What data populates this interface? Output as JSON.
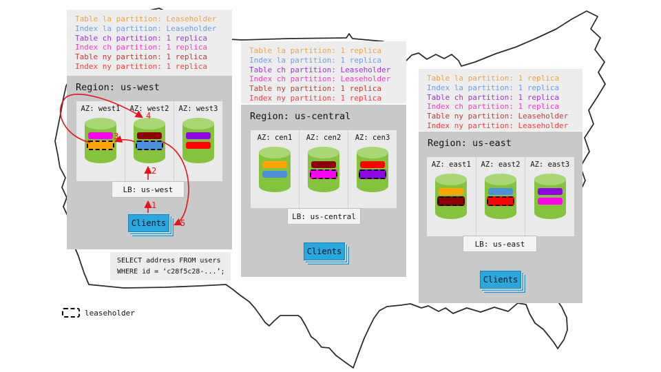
{
  "regions": [
    {
      "name": "us-west",
      "title": "Region: us-west",
      "legend": [
        {
          "text": "Table la partition: Leaseholder",
          "color": "#f0a343"
        },
        {
          "text": "Index la partition: Leaseholder",
          "color": "#6d9ceb"
        },
        {
          "text": "Table ch partition: 1 replica",
          "color": "#a233d8"
        },
        {
          "text": "Index ch partition: 1 replica",
          "color": "#f83cc8"
        },
        {
          "text": "Table ny partition: 1 replica",
          "color": "#b2403a"
        },
        {
          "text": "Index ny partition: 1 replica",
          "color": "#ee4040"
        }
      ],
      "azs": [
        {
          "label": "AZ: west1",
          "bars": [
            {
              "partition": "index-ch",
              "color": "#ff00f0",
              "leaseholder": false
            },
            {
              "partition": "table-la",
              "color": "#ffa400",
              "leaseholder": true
            }
          ]
        },
        {
          "label": "AZ: west2",
          "bars": [
            {
              "partition": "table-ny",
              "color": "#8e0000",
              "leaseholder": false
            },
            {
              "partition": "index-la",
              "color": "#4a90dc",
              "leaseholder": true
            }
          ]
        },
        {
          "label": "AZ: west3",
          "bars": [
            {
              "partition": "table-ch",
              "color": "#8f06e4",
              "leaseholder": false
            },
            {
              "partition": "index-ny",
              "color": "#ff0000",
              "leaseholder": false
            }
          ]
        }
      ],
      "lb_label": "LB: us-west",
      "clients_label": "Clients"
    },
    {
      "name": "us-central",
      "title": "Region: us-central",
      "legend": [
        {
          "text": "Table la partition: 1 replica",
          "color": "#f0a343"
        },
        {
          "text": "Index la partition: 1 replica",
          "color": "#6d9ceb"
        },
        {
          "text": "Table ch partition: Leaseholder",
          "color": "#a233d8"
        },
        {
          "text": "Index ch partition: Leaseholder",
          "color": "#f83cc8"
        },
        {
          "text": "Table ny partition: 1 replica",
          "color": "#b2403a"
        },
        {
          "text": "Index ny partition: 1 replica",
          "color": "#ee4040"
        }
      ],
      "azs": [
        {
          "label": "AZ: cen1",
          "bars": [
            {
              "partition": "table-la",
              "color": "#ffa400",
              "leaseholder": false
            },
            {
              "partition": "index-la",
              "color": "#4a90dc",
              "leaseholder": false
            }
          ]
        },
        {
          "label": "AZ: cen2",
          "bars": [
            {
              "partition": "table-ny",
              "color": "#8e0000",
              "leaseholder": false
            },
            {
              "partition": "index-ch",
              "color": "#ff00f0",
              "leaseholder": true
            }
          ]
        },
        {
          "label": "AZ: cen3",
          "bars": [
            {
              "partition": "index-ny",
              "color": "#ff0000",
              "leaseholder": false
            },
            {
              "partition": "table-ch",
              "color": "#8f06e4",
              "leaseholder": true
            }
          ]
        }
      ],
      "lb_label": "LB: us-central",
      "clients_label": "Clients"
    },
    {
      "name": "us-east",
      "title": "Region: us-east",
      "legend": [
        {
          "text": "Table la partition: 1 replica",
          "color": "#f0a343"
        },
        {
          "text": "Index la partition: 1 replica",
          "color": "#6d9ceb"
        },
        {
          "text": "Table ch partition: 1 replica",
          "color": "#a233d8"
        },
        {
          "text": "Index ch partition: 1 replica",
          "color": "#f83cc8"
        },
        {
          "text": "Table ny partition: Leaseholder",
          "color": "#b2403a"
        },
        {
          "text": "Index ny partition: Leaseholder",
          "color": "#ee4040"
        }
      ],
      "azs": [
        {
          "label": "AZ: east1",
          "bars": [
            {
              "partition": "table-la",
              "color": "#ffa400",
              "leaseholder": false
            },
            {
              "partition": "table-ny",
              "color": "#8e0000",
              "leaseholder": true
            }
          ]
        },
        {
          "label": "AZ: east2",
          "bars": [
            {
              "partition": "index-la",
              "color": "#4a90dc",
              "leaseholder": false
            },
            {
              "partition": "index-ny",
              "color": "#ff0000",
              "leaseholder": true
            }
          ]
        },
        {
          "label": "AZ: east3",
          "bars": [
            {
              "partition": "table-ch",
              "color": "#8f06e4",
              "leaseholder": false
            },
            {
              "partition": "index-ch",
              "color": "#ff00f0",
              "leaseholder": false
            }
          ]
        }
      ],
      "lb_label": "LB: us-east",
      "clients_label": "Clients"
    }
  ],
  "flow_steps": [
    "1",
    "2",
    "3",
    "4",
    "5"
  ],
  "query": {
    "line1": "SELECT address FROM users",
    "line2": "WHERE id = ‘c28f5c28-...’;"
  },
  "footer": {
    "leaseholder_label": "leaseholder"
  },
  "palette": {
    "cylinder_green": "#84c43c",
    "cylinder_top_green": "#a9d774",
    "client_blue": "#2aa7de",
    "arrow_red": "#e8101c",
    "region_gray": "#c9c9c9",
    "panel_gray": "#ededed"
  }
}
